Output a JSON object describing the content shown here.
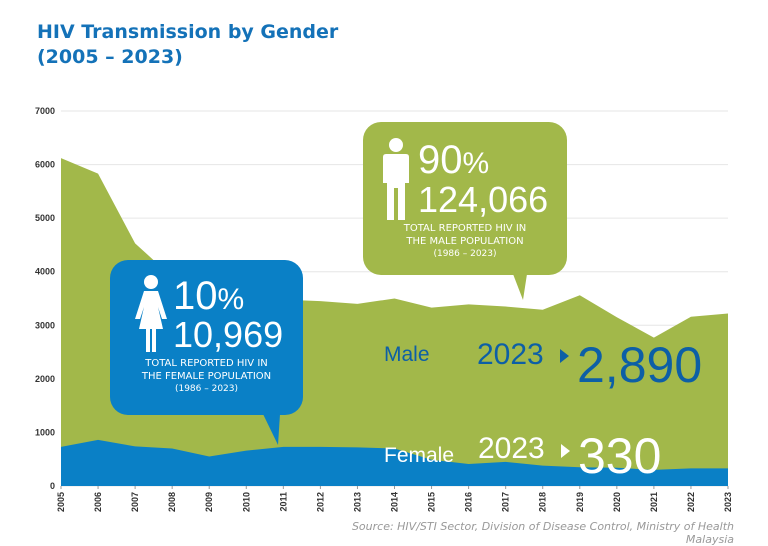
{
  "title_line1": "HIV Transmission by Gender",
  "title_line2": "(2005 – 2023)",
  "colors": {
    "male": "#a2b84a",
    "female": "#0a80c6",
    "title": "#1472b8",
    "male_text": "#0d5fa6"
  },
  "chart_data": {
    "type": "area",
    "stacked": true,
    "x": [
      2005,
      2006,
      2007,
      2008,
      2009,
      2010,
      2011,
      2012,
      2013,
      2014,
      2015,
      2016,
      2017,
      2018,
      2019,
      2020,
      2021,
      2022,
      2023
    ],
    "series": [
      {
        "name": "Female",
        "values": [
          730,
          860,
          740,
          700,
          550,
          660,
          730,
          730,
          720,
          700,
          490,
          410,
          450,
          380,
          350,
          340,
          300,
          330,
          330
        ]
      },
      {
        "name": "Male",
        "values": [
          5390,
          4970,
          3790,
          3200,
          3050,
          2840,
          2750,
          2720,
          2680,
          2800,
          2840,
          2980,
          2900,
          2910,
          3210,
          2810,
          2470,
          2830,
          2890
        ]
      }
    ],
    "ylim": [
      0,
      7000
    ],
    "yticks": [
      0,
      1000,
      2000,
      3000,
      4000,
      5000,
      6000,
      7000
    ],
    "grid": true
  },
  "male_callout": {
    "percent": "90",
    "percent_sign": "%",
    "total": "124,066",
    "line1": "TOTAL REPORTED HIV IN",
    "line2": "THE MALE POPULATION",
    "line3": "(1986 – 2023)"
  },
  "female_callout": {
    "percent": "10",
    "percent_sign": "%",
    "total": "10,969",
    "line1": "TOTAL REPORTED HIV IN",
    "line2": "THE FEMALE POPULATION",
    "line3": "(1986 – 2023)"
  },
  "male_label": {
    "name": "Male",
    "year": "2023",
    "value": "2,890"
  },
  "female_label": {
    "name": "Female",
    "year": "2023",
    "value": "330"
  },
  "source_line1": "Source: HIV/STI Sector, Division of Disease Control, Ministry of Health",
  "source_line2": "Malaysia"
}
